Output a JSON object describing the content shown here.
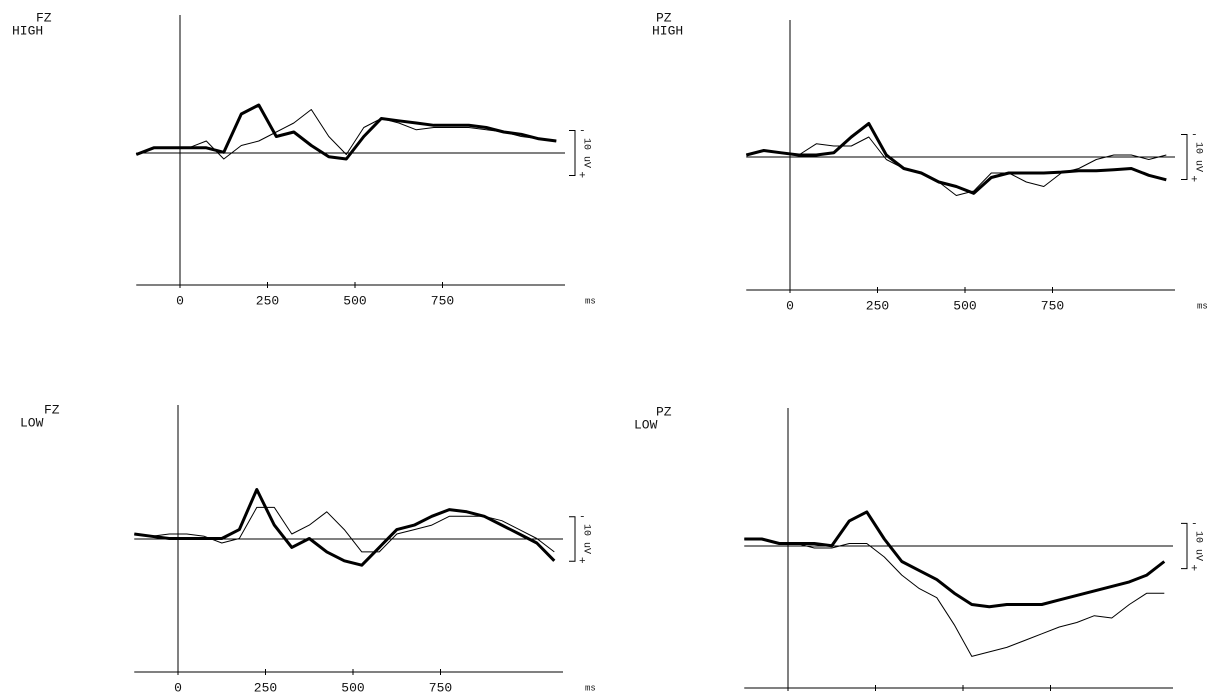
{
  "chart_data": [
    {
      "type": "line",
      "title": "FZ",
      "subtitle": "HIGH",
      "x_unit": "ms",
      "x": [
        -125,
        -75,
        -25,
        25,
        75,
        125,
        175,
        225,
        275,
        325,
        375,
        425,
        475,
        525,
        575,
        625,
        675,
        725,
        775,
        825,
        875,
        925,
        975,
        1025,
        1075
      ],
      "xlim": [
        -125,
        1100
      ],
      "xticks": [
        0,
        250,
        500,
        750
      ],
      "ylim": [
        30,
        -30
      ],
      "scale_bar": {
        "value": 10,
        "label": "10 uV",
        "top": "-",
        "bottom": "+"
      },
      "series": [
        {
          "color": "#000000",
          "line_width": 3,
          "values": [
            1,
            -0.5,
            -0.5,
            -0.5,
            -0.5,
            0.5,
            -8,
            -10,
            -3,
            -4,
            -1,
            1.5,
            2,
            -3,
            -7,
            -6.5,
            -6,
            -5.5,
            -5.5,
            -5.5,
            -5,
            -4,
            -3.5,
            -2.5,
            -2
          ]
        },
        {
          "color": "#000000",
          "line_width": 1,
          "values": [
            1,
            -0.5,
            -0.5,
            -0.5,
            -2,
            2,
            -1,
            -2,
            -4,
            -6,
            -9,
            -3,
            1,
            -5,
            -7,
            -6,
            -4.5,
            -5,
            -5,
            -5,
            -4.5,
            -4,
            -3,
            -2.5,
            -2
          ]
        }
      ]
    },
    {
      "type": "line",
      "title": "PZ",
      "subtitle": "HIGH",
      "x_unit": "ms",
      "x": [
        -125,
        -75,
        -25,
        25,
        75,
        125,
        175,
        225,
        275,
        325,
        375,
        425,
        475,
        525,
        575,
        625,
        675,
        725,
        775,
        825,
        875,
        925,
        975,
        1025,
        1075
      ],
      "xlim": [
        -125,
        1100
      ],
      "xticks": [
        0,
        250,
        500,
        750
      ],
      "ylim": [
        30,
        -30
      ],
      "scale_bar": {
        "value": 10,
        "label": "10 uV",
        "top": "-",
        "bottom": "+"
      },
      "series": [
        {
          "color": "#000000",
          "line_width": 3,
          "values": [
            0,
            -1,
            -0.5,
            0,
            0,
            -0.5,
            -4,
            -7,
            0,
            3,
            4,
            6,
            7,
            8.5,
            5,
            4,
            4,
            4,
            3.8,
            3.5,
            3.5,
            3.3,
            3,
            4.5,
            5.5
          ]
        },
        {
          "color": "#000000",
          "line_width": 1,
          "values": [
            0,
            -1,
            -0.5,
            0,
            -2.5,
            -2,
            -2,
            -4,
            1,
            3,
            4,
            6,
            9,
            8,
            4,
            4,
            6,
            7,
            4,
            3,
            1,
            0,
            0,
            1,
            0
          ]
        }
      ]
    },
    {
      "type": "line",
      "title": "FZ",
      "subtitle": "LOW",
      "x_unit": "ms",
      "x": [
        -125,
        -75,
        -25,
        25,
        75,
        125,
        175,
        225,
        275,
        325,
        375,
        425,
        475,
        525,
        575,
        625,
        675,
        725,
        775,
        825,
        875,
        925,
        975,
        1025,
        1075
      ],
      "xlim": [
        -125,
        1100
      ],
      "xticks": [
        0,
        250,
        500,
        750
      ],
      "ylim": [
        30,
        -30
      ],
      "scale_bar": {
        "value": 10,
        "label": "10 uV",
        "top": "-",
        "bottom": "+"
      },
      "series": [
        {
          "color": "#000000",
          "line_width": 3,
          "values": [
            -1,
            -0.5,
            0,
            0,
            0,
            0,
            -2,
            -11,
            -3,
            2,
            0,
            3,
            5,
            6,
            2,
            -2,
            -3,
            -5,
            -6.5,
            -6,
            -5,
            -3,
            -1,
            1,
            5
          ]
        },
        {
          "color": "#000000",
          "line_width": 1,
          "values": [
            -1,
            -0.5,
            -1,
            -1,
            -0.5,
            1,
            0,
            -7,
            -7,
            -1,
            -3,
            -6,
            -2,
            3,
            3,
            -1,
            -2,
            -3,
            -5,
            -5,
            -5,
            -4,
            -2,
            0,
            3
          ]
        }
      ]
    },
    {
      "type": "line",
      "title": "PZ",
      "subtitle": "LOW",
      "x_unit": "ms",
      "x": [
        -125,
        -75,
        -25,
        25,
        75,
        125,
        175,
        225,
        275,
        325,
        375,
        425,
        475,
        525,
        575,
        625,
        675,
        725,
        775,
        825,
        875,
        925,
        975,
        1025,
        1075
      ],
      "xlim": [
        -125,
        1100
      ],
      "xticks": [
        0,
        250,
        500,
        750
      ],
      "ylim": [
        32,
        -30
      ],
      "scale_bar": {
        "value": 10,
        "label": "10 uV",
        "top": "-",
        "bottom": "+"
      },
      "series": [
        {
          "color": "#000000",
          "line_width": 3,
          "values": [
            -1,
            -1,
            0,
            0,
            0,
            0.5,
            -5,
            -7,
            -1,
            4,
            6,
            8,
            11,
            13.5,
            14,
            13.5,
            13.5,
            13.5,
            12.5,
            11.5,
            10.5,
            9.5,
            8.5,
            7,
            4
          ]
        },
        {
          "color": "#000000",
          "line_width": 1,
          "values": [
            -1,
            -1,
            0,
            0,
            1,
            1,
            0,
            0,
            3,
            7,
            10,
            12,
            18,
            25,
            24,
            23,
            21.5,
            20,
            18.5,
            17.5,
            16,
            16.5,
            13.5,
            11,
            11
          ]
        }
      ]
    }
  ]
}
